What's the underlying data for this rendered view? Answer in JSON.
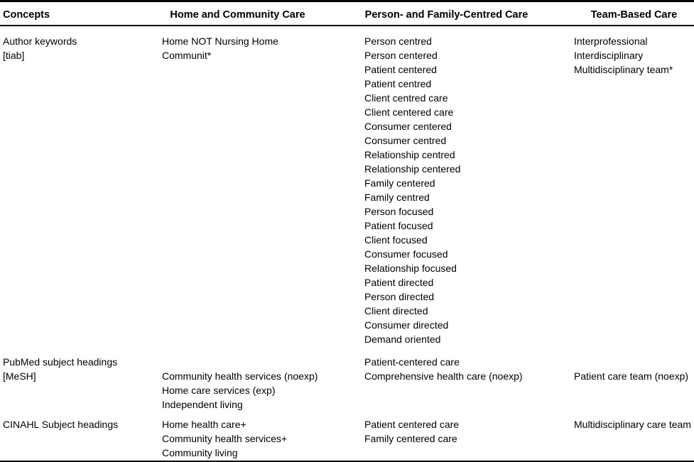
{
  "colors": {
    "text": "#000000",
    "background": "#ffffff",
    "rule": "#000000"
  },
  "table": {
    "columns": [
      {
        "key": "concepts",
        "label": "Concepts"
      },
      {
        "key": "home_community",
        "label": "Home and Community Care"
      },
      {
        "key": "person_family",
        "label": "Person- and Family-Centred Care"
      },
      {
        "key": "team_based",
        "label": "Team-Based Care"
      }
    ],
    "rows": [
      {
        "concepts": [
          "Author keywords",
          "[tiab]"
        ],
        "home_community": [
          "Home NOT Nursing Home",
          "Communit*"
        ],
        "person_family": [
          "Person centred",
          "Person centered",
          "Patient centered",
          "Patient centred",
          "Client centred care",
          "Client centered care",
          "Consumer centered",
          "Consumer centred",
          "Relationship centred",
          "Relationship centered",
          "Family centered",
          "Family centred",
          "Person focused",
          "Patient focused",
          "Client focused",
          "Consumer focused",
          "Relationship focused",
          "Patient directed",
          "Person directed",
          "Client directed",
          "Consumer directed",
          "Demand oriented"
        ],
        "team_based": [
          "Interprofessional",
          "Interdisciplinary",
          "Multidisciplinary team*"
        ]
      },
      {
        "concepts": [
          "PubMed subject headings",
          "[MeSH]"
        ],
        "home_community": [
          "",
          "Community health services (noexp)",
          "Home care services (exp)",
          "Independent living"
        ],
        "person_family": [
          "Patient-centered care",
          "Comprehensive health care (noexp)"
        ],
        "team_based": [
          "",
          "Patient care team (noexp)"
        ]
      },
      {
        "concepts": [
          "CINAHL Subject headings"
        ],
        "home_community": [
          "Home health care+",
          "Community health services+",
          "Community living"
        ],
        "person_family": [
          "Patient centered care",
          "Family centered care"
        ],
        "team_based": [
          "Multidisciplinary care team"
        ]
      }
    ]
  }
}
